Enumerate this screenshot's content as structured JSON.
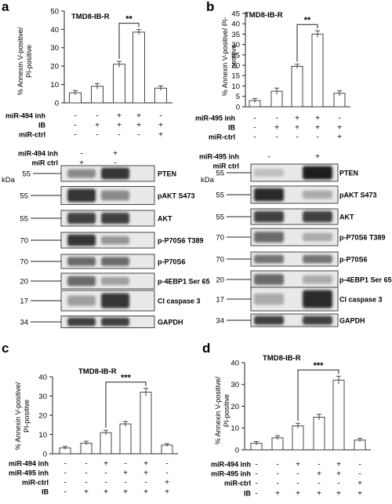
{
  "panels": [
    {
      "letter": "a",
      "title": "TMD8-IB-R",
      "y_label": [
        "% Annexin V-positive/",
        "PI-positive"
      ],
      "chart_data": {
        "type": "bar",
        "values": [
          5.5,
          9,
          21,
          38.5,
          8
        ],
        "errors": [
          1.2,
          1.5,
          1.6,
          1.4,
          1.2
        ],
        "ylim": [
          0,
          50
        ],
        "yticks": [
          0,
          10,
          20,
          30,
          40,
          50
        ],
        "significance": {
          "from": 2,
          "to": 3,
          "label": "**"
        },
        "conditions": [
          {
            "label": "miR-494 inh",
            "signs": [
              "-",
              "-",
              "+",
              "+",
              "-"
            ]
          },
          {
            "label": "IB",
            "signs": [
              "-",
              "+",
              "+",
              "+",
              "+"
            ]
          },
          {
            "label": "miR-ctrl",
            "signs": [
              "-",
              "-",
              "-",
              "-",
              "+"
            ]
          }
        ]
      },
      "blot": {
        "lane_conditions": [
          {
            "label": "miR-494 inh",
            "signs": [
              "-",
              "+"
            ]
          },
          {
            "label": "miR ctrl",
            "signs": [
              "+",
              "-"
            ]
          }
        ],
        "kda_header": "kDa",
        "rows": [
          {
            "mw": "55",
            "label": "PTEN",
            "intensity": [
              0.45,
              0.85
            ]
          },
          {
            "mw": "55",
            "label": "pAKT S473",
            "intensity": [
              0.85,
              0.45
            ]
          },
          {
            "mw": "55",
            "label": "AKT",
            "intensity": [
              0.8,
              0.8
            ]
          },
          {
            "mw": "70",
            "label": "p-P70S6 T389",
            "intensity": [
              0.85,
              0.4
            ]
          },
          {
            "mw": "70",
            "label": "p-P70S6",
            "intensity": [
              0.6,
              0.6
            ]
          },
          {
            "mw": "20",
            "label": "p-4EBP1 Ser 65",
            "intensity": [
              0.6,
              0.35
            ]
          },
          {
            "mw": "17",
            "label": "Cl caspase 3",
            "intensity": [
              0.35,
              0.85
            ]
          },
          {
            "mw": "34",
            "label": "GAPDH",
            "intensity": [
              0.8,
              0.8
            ]
          }
        ]
      }
    },
    {
      "letter": "b",
      "title": "TMD8-IB-R",
      "y_label": [
        "% Annexin V-positive/ PI-",
        "positive"
      ],
      "chart_data": {
        "type": "bar",
        "values": [
          3,
          7.5,
          19.5,
          35,
          6.5
        ],
        "errors": [
          1.0,
          1.5,
          1.0,
          1.6,
          1.2
        ],
        "ylim": [
          0,
          45
        ],
        "yticks": [
          0,
          5,
          10,
          15,
          20,
          25,
          30,
          35,
          40,
          45
        ],
        "significance": {
          "from": 2,
          "to": 3,
          "label": "**"
        },
        "conditions": [
          {
            "label": "miR-495 inh",
            "signs": [
              "-",
              "-",
              "+",
              "+",
              "-"
            ]
          },
          {
            "label": "IB",
            "signs": [
              "-",
              "+",
              "+",
              "+",
              "+"
            ]
          },
          {
            "label": "miR-ctrl",
            "signs": [
              "-",
              "-",
              "-",
              "-",
              "+"
            ]
          }
        ]
      },
      "blot": {
        "lane_conditions": [
          {
            "label": "miR-495 inh",
            "signs": [
              "-",
              "+"
            ]
          },
          {
            "label": "miR ctrl",
            "signs": [
              "+",
              "-"
            ]
          }
        ],
        "kda_header": "kDa",
        "rows": [
          {
            "mw": "55",
            "label": "PTEN",
            "intensity": [
              0.2,
              0.95
            ]
          },
          {
            "mw": "55",
            "label": "pAKT S473",
            "intensity": [
              0.9,
              0.3
            ]
          },
          {
            "mw": "55",
            "label": "AKT",
            "intensity": [
              0.8,
              0.8
            ]
          },
          {
            "mw": "70",
            "label": "p-P70S6 T389",
            "intensity": [
              0.6,
              0.3
            ]
          },
          {
            "mw": "70",
            "label": "p-P70S6",
            "intensity": [
              0.55,
              0.55
            ]
          },
          {
            "mw": "20",
            "label": "p-4EBP1 Ser 65",
            "intensity": [
              0.6,
              0.3
            ]
          },
          {
            "mw": "17",
            "label": "Cl caspase 3",
            "intensity": [
              0.3,
              0.9
            ]
          },
          {
            "mw": "34",
            "label": "GAPDH",
            "intensity": [
              0.8,
              0.8
            ]
          }
        ]
      }
    },
    {
      "letter": "c",
      "title": "TMD8-IB-R",
      "y_label": [
        "% Annexin V-positive/",
        "PI-positive"
      ],
      "chart_data": {
        "type": "bar",
        "values": [
          3,
          5.5,
          11,
          15.5,
          32,
          4.5
        ],
        "errors": [
          0.8,
          1.0,
          1.2,
          1.3,
          2.0,
          0.8
        ],
        "ylim": [
          0,
          40
        ],
        "yticks": [
          0,
          10,
          20,
          30,
          40
        ],
        "significance": {
          "from": 2,
          "to": 4,
          "label": "***"
        },
        "conditions": [
          {
            "label": "miR-494 inh",
            "signs": [
              "-",
              "-",
              "+",
              "-",
              "+",
              "-"
            ]
          },
          {
            "label": "miR-495 inh",
            "signs": [
              "-",
              "-",
              "-",
              "+",
              "+",
              "-"
            ]
          },
          {
            "label": "miR-ctrl",
            "signs": [
              "-",
              "-",
              "-",
              "-",
              "-",
              "+"
            ]
          },
          {
            "label": "IB",
            "signs": [
              "-",
              "+",
              "+",
              "+",
              "+",
              "+"
            ]
          }
        ]
      }
    },
    {
      "letter": "d",
      "title": "TMD8-IB-R",
      "y_label": [
        "% Annexin V-positive/",
        "PI-positive"
      ],
      "chart_data": {
        "type": "bar",
        "values": [
          3,
          5.5,
          11,
          15,
          32,
          4.5
        ],
        "errors": [
          0.8,
          1.0,
          1.2,
          1.3,
          1.8,
          0.8
        ],
        "ylim": [
          0,
          40
        ],
        "yticks": [
          0,
          10,
          20,
          30,
          40
        ],
        "significance": {
          "from": 2,
          "to": 4,
          "label": "***"
        },
        "conditions": [
          {
            "label": "miR-494 inh",
            "signs": [
              "-",
              "-",
              "+",
              "-",
              "+",
              "-"
            ]
          },
          {
            "label": "miR-495 inh",
            "signs": [
              "-",
              "-",
              "-",
              "+",
              "+",
              "-"
            ]
          },
          {
            "label": "miR-ctrl",
            "signs": [
              "-",
              "-",
              "-",
              "-",
              "-",
              "+"
            ]
          },
          {
            "label": "IB",
            "signs": [
              "-",
              "+",
              "+",
              "+",
              "+",
              "+"
            ]
          }
        ]
      }
    }
  ]
}
